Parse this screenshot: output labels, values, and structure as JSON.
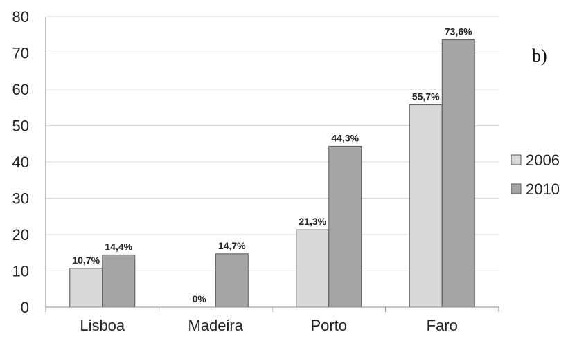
{
  "chart_data": {
    "type": "bar",
    "categories": [
      "Lisboa",
      "Madeira",
      "Porto",
      "Faro"
    ],
    "series": [
      {
        "name": "2006",
        "values": [
          10.7,
          0,
          21.3,
          55.7
        ],
        "labels": [
          "10,7%",
          "0%",
          "21,3%",
          "55,7%"
        ],
        "color": "#d9d9d9"
      },
      {
        "name": "2010",
        "values": [
          14.4,
          14.7,
          44.3,
          73.6
        ],
        "labels": [
          "14,4%",
          "14,7%",
          "44,3%",
          "73,6%"
        ],
        "color": "#a6a6a6"
      }
    ],
    "y_ticks": [
      "0",
      "10",
      "20",
      "30",
      "40",
      "50",
      "60",
      "70",
      "80"
    ],
    "ylim": [
      0,
      80
    ],
    "grid": true,
    "legend_position": "right",
    "panel_label": "b)"
  }
}
